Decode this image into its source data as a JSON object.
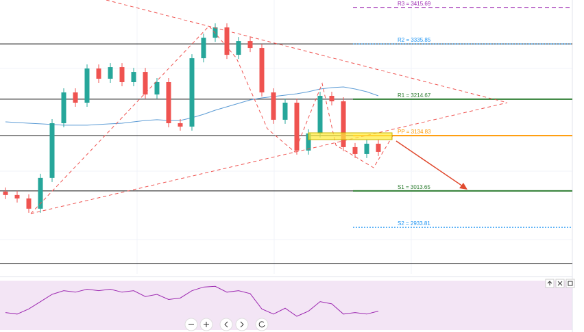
{
  "chart_data": {
    "type": "candlestick",
    "ylim": [
      2832,
      3432
    ],
    "up_color": "#26a69a",
    "down_color": "#ef5350",
    "open": [
      3012.2,
      3004.7,
      2997.2,
      2974.7,
      3042.2,
      3162.0,
      3229.5,
      3207.0,
      3281.9,
      3259.5,
      3284.9,
      3252.0,
      3274.4,
      3225.0,
      3252.0,
      3162.0,
      3154.6,
      3304.4,
      3349.4,
      3371.9,
      3311.9,
      3341.9,
      3326.9,
      3229.5,
      3169.6,
      3207.0,
      3102.1,
      3139.6,
      3222.0,
      3210.0,
      3109.6,
      3094.6,
      3117.1
    ],
    "high": [
      3021.2,
      3013.7,
      3006.2,
      3051.2,
      3171.0,
      3238.5,
      3238.5,
      3290.9,
      3290.9,
      3293.9,
      3293.9,
      3283.4,
      3283.4,
      3261.0,
      3261.0,
      3171.0,
      3313.4,
      3358.4,
      3380.9,
      3380.9,
      3350.9,
      3350.9,
      3335.9,
      3238.5,
      3216.0,
      3216.0,
      3148.6,
      3231.0,
      3231.0,
      3219.0,
      3118.6,
      3126.1,
      3126.1
    ],
    "low": [
      2995.7,
      2988.2,
      2965.7,
      2965.7,
      3033.2,
      3153.0,
      3198.0,
      3198.0,
      3250.5,
      3250.5,
      3243.0,
      3243.0,
      3216.0,
      3216.0,
      3153.0,
      3145.6,
      3145.6,
      3295.4,
      3340.4,
      3302.9,
      3302.9,
      3317.9,
      3220.5,
      3160.6,
      3160.6,
      3093.1,
      3093.1,
      3130.6,
      3201.0,
      3100.6,
      3085.6,
      3085.6,
      3090.1
    ],
    "close": [
      3004.7,
      2997.2,
      2974.7,
      3042.2,
      3162.0,
      3229.5,
      3207.0,
      3281.9,
      3259.5,
      3284.9,
      3252.0,
      3274.4,
      3225.0,
      3252.0,
      3162.0,
      3154.6,
      3304.4,
      3349.4,
      3371.9,
      3311.9,
      3341.9,
      3326.9,
      3229.5,
      3169.6,
      3207.0,
      3102.1,
      3139.6,
      3222.0,
      3210.0,
      3109.6,
      3094.6,
      3117.1,
      3099.1
    ],
    "moving_average": {
      "color": "#5b9bd5",
      "values": [
        3165.0,
        3163.5,
        3162.0,
        3160.6,
        3159.1,
        3157.6,
        3157.6,
        3157.6,
        3159.1,
        3160.6,
        3162.0,
        3165.0,
        3168.0,
        3169.6,
        3168.0,
        3168.0,
        3174.0,
        3181.5,
        3190.5,
        3198.0,
        3205.5,
        3213.0,
        3217.5,
        3220.5,
        3223.5,
        3226.5,
        3231.0,
        3237.0,
        3240.0,
        3241.5,
        3237.0,
        3231.0,
        3222.0
      ]
    },
    "horizontal_lines": [
      3335.85,
      3214.67,
      3134.83,
      3013.65,
      2854.8
    ],
    "pivots": [
      {
        "value": 3415.69,
        "label": "R3 = 3415.69",
        "color": "#9c27b0",
        "style": "dashed"
      },
      {
        "value": 3335.85,
        "label": "R2 = 3335.85",
        "color": "#2196f3",
        "style": "dotted"
      },
      {
        "value": 3214.67,
        "label": "R1 = 3214.67",
        "color": "#2e7d32",
        "style": "solid"
      },
      {
        "value": 3134.83,
        "label": "PP = 3134.83",
        "color": "#ff9800",
        "style": "solid"
      },
      {
        "value": 3013.65,
        "label": "S1 = 3013.65",
        "color": "#2e7d32",
        "style": "solid"
      },
      {
        "value": 2933.81,
        "label": "S2 = 2933.81",
        "color": "#2196f3",
        "style": "dotted"
      }
    ],
    "rsi": {
      "color": "#9c27b0",
      "ylim": [
        20,
        80
      ],
      "values": [
        40,
        38,
        45,
        55,
        65,
        70,
        68,
        72,
        70,
        72,
        68,
        70,
        62,
        65,
        58,
        60,
        70,
        75,
        76,
        68,
        70,
        66,
        45,
        38,
        46,
        35,
        42,
        55,
        52,
        38,
        40,
        38,
        42
      ]
    }
  }
}
